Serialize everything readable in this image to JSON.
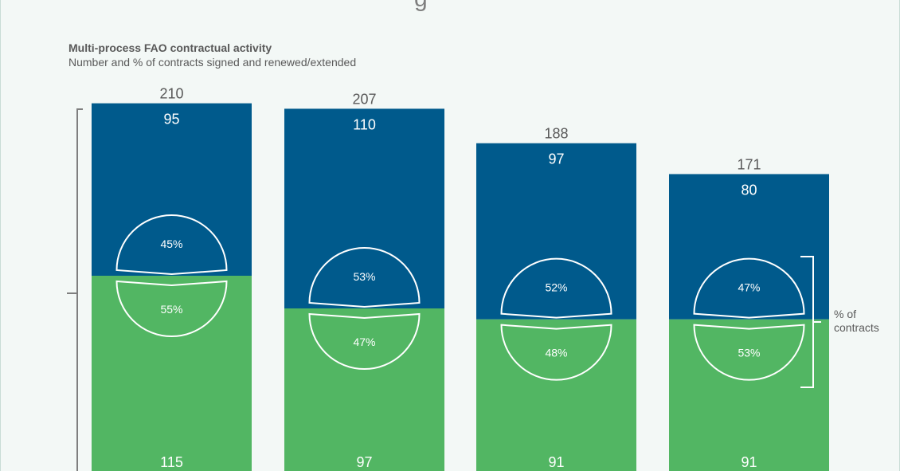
{
  "page": {
    "cut_glyph": "g"
  },
  "chart_data": {
    "type": "bar",
    "title": "Multi-process FAO contractual activity",
    "subtitle": "Number and % of contracts signed and renewed/extended",
    "stacked": true,
    "categories": [
      "",
      "",
      "",
      ""
    ],
    "totals": [
      210,
      207,
      188,
      171
    ],
    "series": [
      {
        "key": "signed",
        "color": "#005a8c",
        "values": [
          95,
          110,
          97,
          80
        ],
        "percentages": [
          "45%",
          "53%",
          "52%",
          "47%"
        ]
      },
      {
        "key": "renewed",
        "color": "#52b663",
        "values": [
          115,
          97,
          91,
          91
        ],
        "percentages": [
          "55%",
          "47%",
          "48%",
          "53%"
        ]
      }
    ],
    "annotation": [
      "% of",
      "contracts"
    ],
    "ylim": [
      0,
      210
    ],
    "grid": false,
    "legend": "none"
  }
}
